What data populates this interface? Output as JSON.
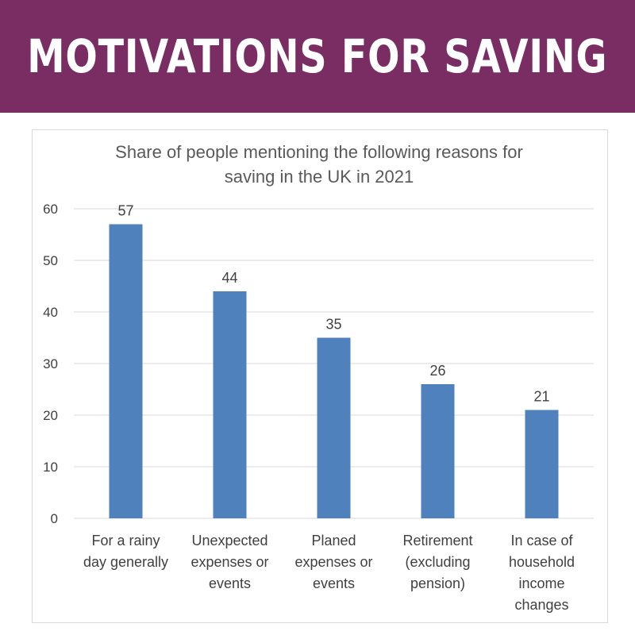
{
  "banner": {
    "title": "MOTIVATIONS FOR SAVING"
  },
  "colors": {
    "banner_bg": "#7a2d63",
    "bar": "#4f81bd",
    "gridline": "#d9d9d9"
  },
  "chart_data": {
    "type": "bar",
    "title_lines": [
      "Share of people mentioning the following reasons for",
      "saving in the UK in 2021"
    ],
    "categories": [
      [
        "For a rainy",
        "day generally"
      ],
      [
        "Unexpected",
        "expenses or",
        "events"
      ],
      [
        "Planed",
        "expenses or",
        "events"
      ],
      [
        "Retirement",
        "(excluding",
        "pension)"
      ],
      [
        "In case of",
        "household",
        "income",
        "changes"
      ]
    ],
    "values": [
      57,
      44,
      35,
      26,
      21
    ],
    "ylim": [
      0,
      60
    ],
    "yticks": [
      0,
      10,
      20,
      30,
      40,
      50,
      60
    ],
    "grid": true,
    "data_labels": true,
    "legend": "none"
  }
}
